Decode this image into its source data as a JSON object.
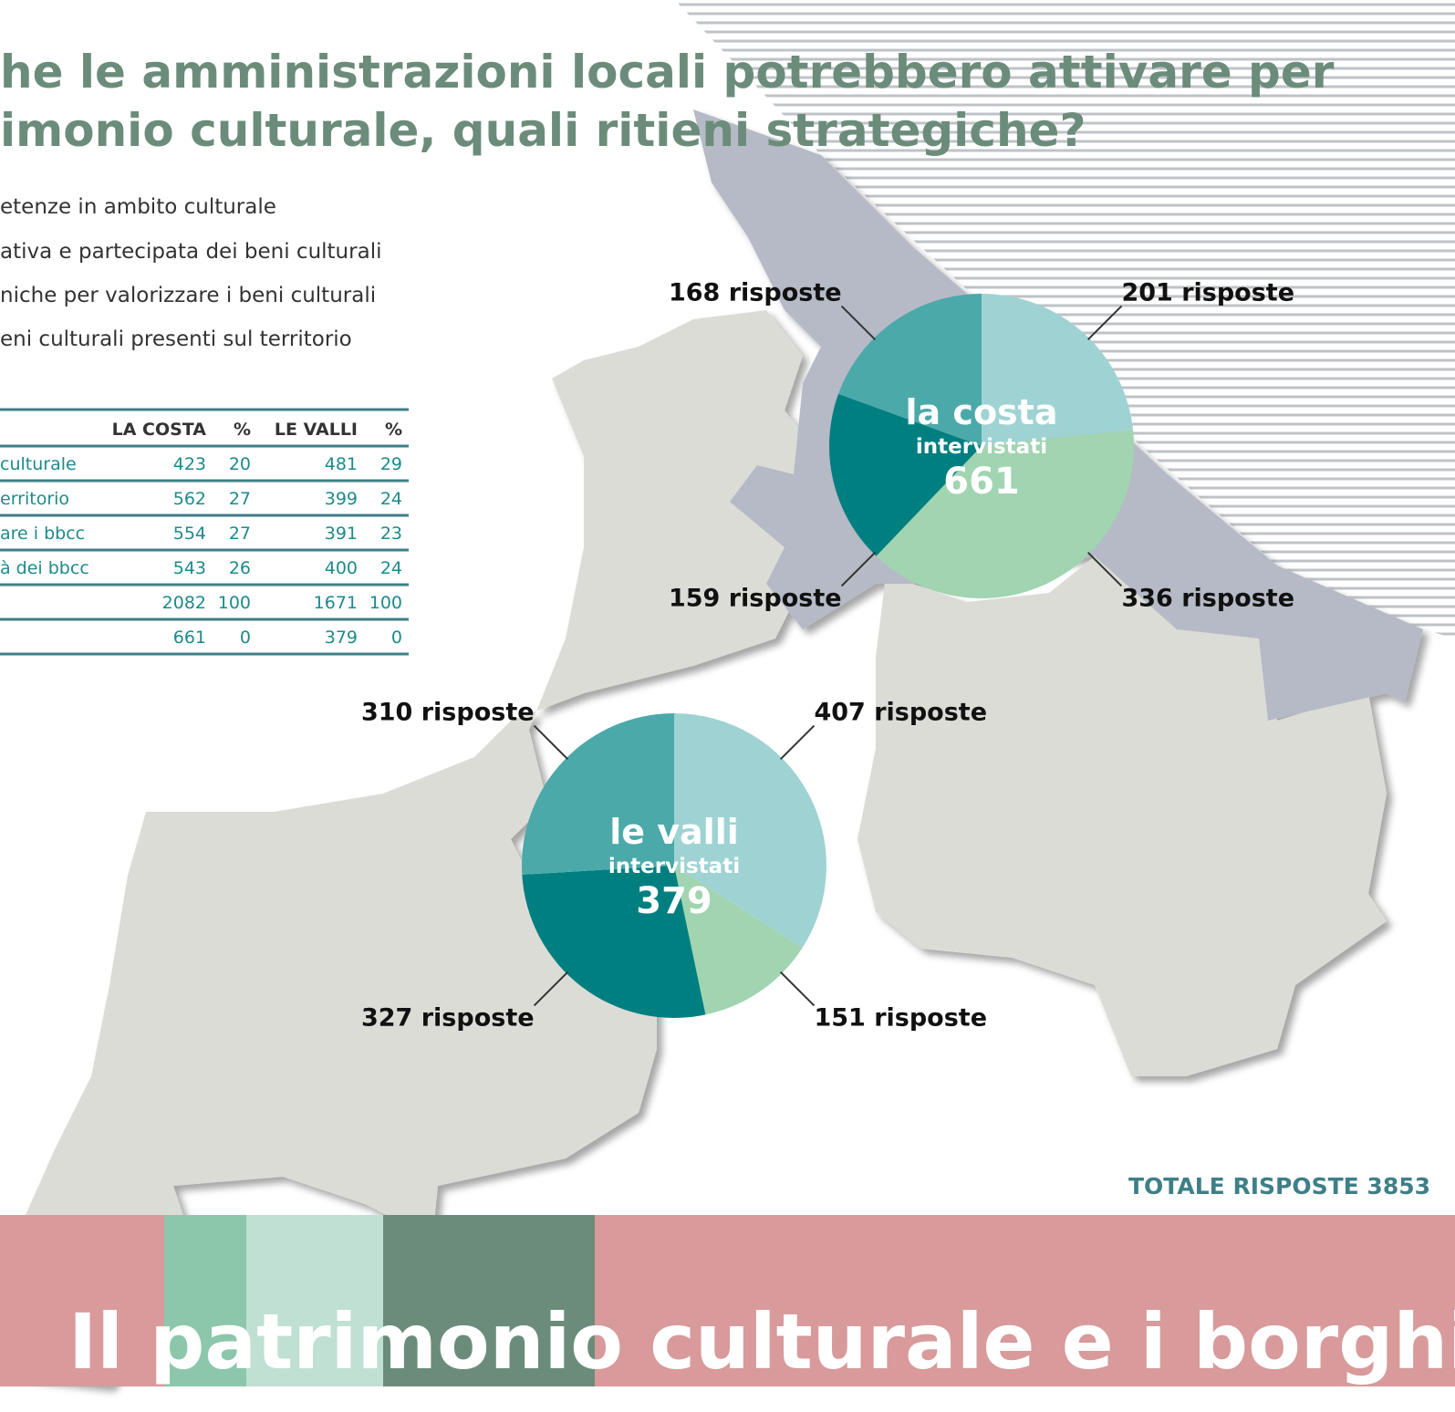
{
  "header": {
    "title_lines": [
      "he le amministrazioni locali potrebbero attivare per",
      "imonio culturale, quali ritieni strategiche?"
    ]
  },
  "legend": [
    "etenze in ambito culturale",
    "ativa e partecipata dei beni culturali",
    "niche per valorizzare i beni culturali",
    "eni culturali presenti sul territorio"
  ],
  "table": {
    "columns": [
      "LA COSTA",
      "%",
      "LE VALLI",
      "%"
    ],
    "rows": [
      {
        "label": "culturale",
        "cells": [
          423,
          20,
          481,
          29
        ]
      },
      {
        "label": "erritorio",
        "cells": [
          562,
          27,
          399,
          24
        ]
      },
      {
        "label": "are i bbcc",
        "cells": [
          554,
          27,
          391,
          23
        ]
      },
      {
        "label": "à dei bbcc",
        "cells": [
          543,
          26,
          400,
          24
        ]
      },
      {
        "cells": [
          2082,
          100,
          1671,
          100
        ]
      },
      {
        "cells": [
          661,
          0,
          379,
          0
        ]
      }
    ]
  },
  "chart_data": [
    {
      "type": "pie",
      "title": "la costa",
      "subtitle": "intervistati",
      "total": 661,
      "values": [
        201,
        336,
        159,
        168
      ],
      "value_labels": [
        "201 risposte",
        "336 risposte",
        "159 risposte",
        "168 risposte"
      ],
      "colors": [
        "#9fd3d3",
        "#a1d4b0",
        "#007f80",
        "#4ba9a9"
      ]
    },
    {
      "type": "pie",
      "title": "le valli",
      "subtitle": "intervistati",
      "total": 379,
      "values": [
        407,
        151,
        327,
        310
      ],
      "value_labels": [
        "407 risposte",
        "151 risposte",
        "327 risposte",
        "310 risposte"
      ],
      "colors": [
        "#9fd3d3",
        "#a1d4b0",
        "#007f80",
        "#4ba9a9"
      ]
    }
  ],
  "totals": "TOTALE RISPOSTE 3853",
  "footer": "Il patrimonio culturale e i borghi"
}
